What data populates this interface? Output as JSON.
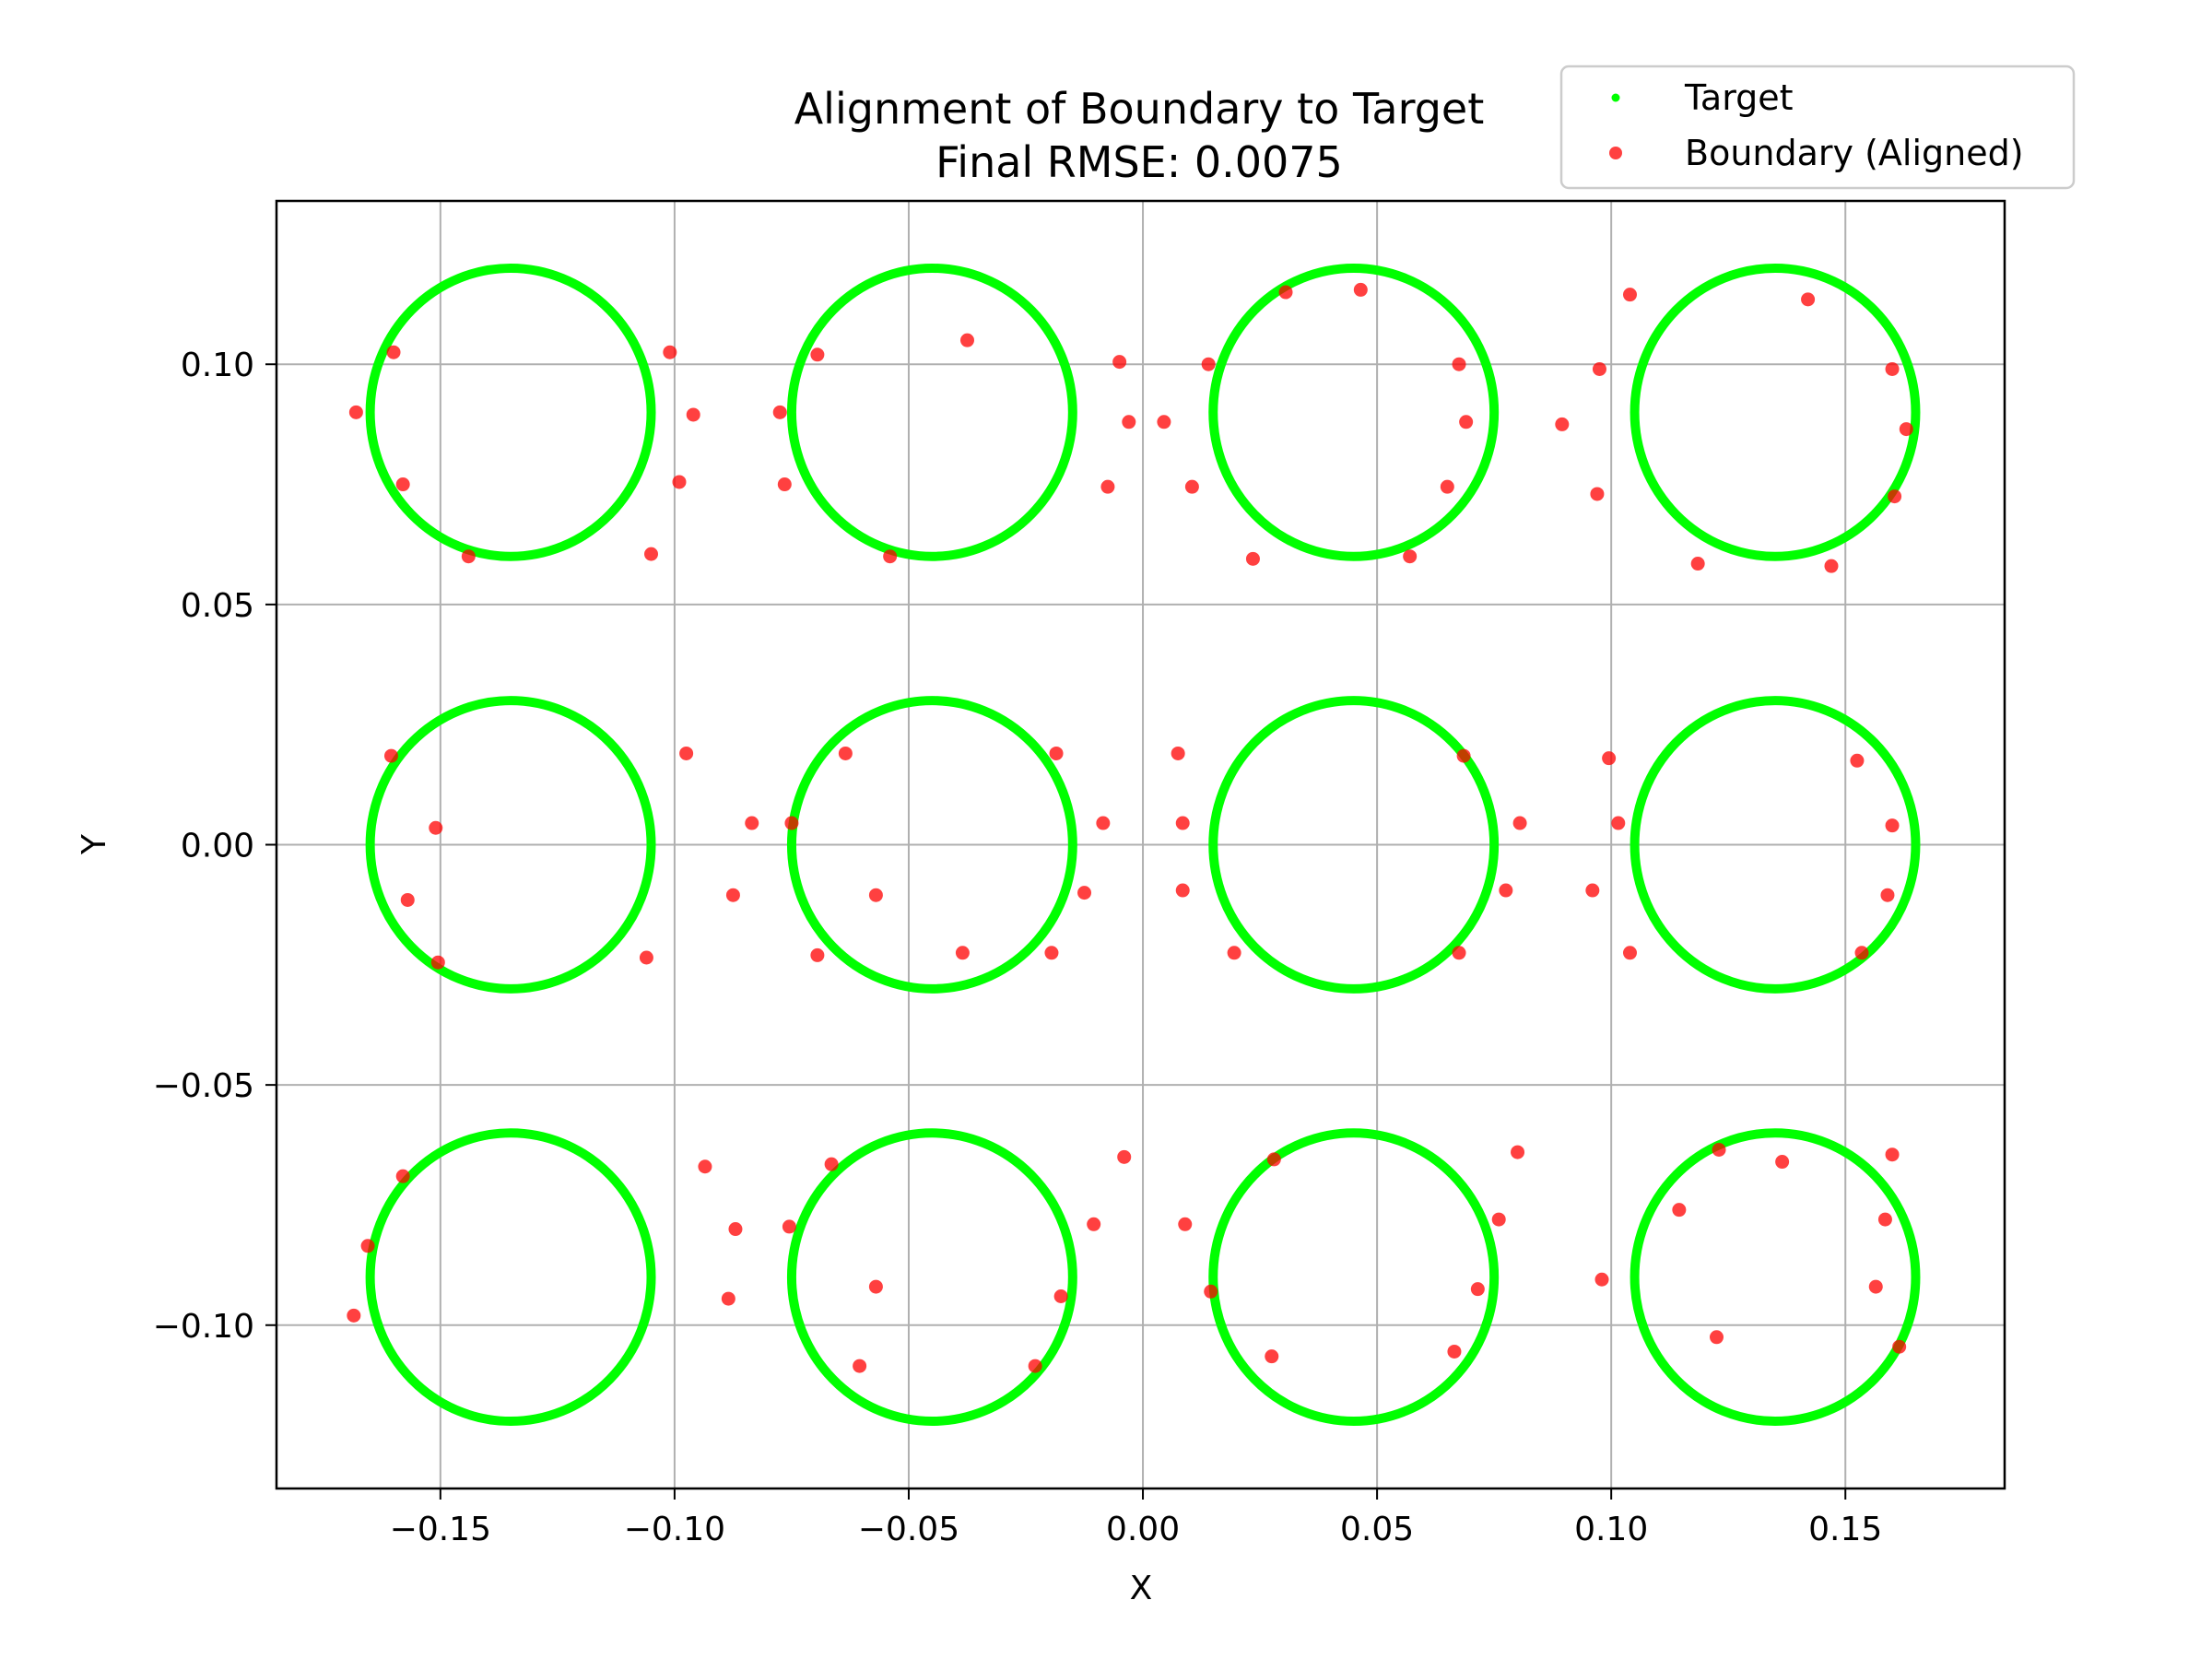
{
  "chart_data": {
    "type": "scatter",
    "title": [
      "Alignment of Boundary to Target",
      "Final RMSE: 0.0075"
    ],
    "xlabel": "X",
    "ylabel": "Y",
    "xlim": [
      -0.185,
      0.184
    ],
    "ylim": [
      -0.134,
      0.134
    ],
    "grid": true,
    "legend_position": "top-right",
    "xticks": [
      {
        "value": -0.15,
        "label": "−0.15"
      },
      {
        "value": -0.1,
        "label": "−0.10"
      },
      {
        "value": -0.05,
        "label": "−0.05"
      },
      {
        "value": 0.0,
        "label": "0.00"
      },
      {
        "value": 0.05,
        "label": "0.05"
      },
      {
        "value": 0.1,
        "label": "0.10"
      },
      {
        "value": 0.15,
        "label": "0.15"
      }
    ],
    "yticks": [
      {
        "value": 0.1,
        "label": "0.10"
      },
      {
        "value": 0.05,
        "label": "0.05"
      },
      {
        "value": 0.0,
        "label": "0.00"
      },
      {
        "value": -0.05,
        "label": "−0.05"
      },
      {
        "value": -0.1,
        "label": "−0.10"
      }
    ],
    "series": [
      {
        "name": "Target",
        "color": "#00ff00",
        "shape": "circles",
        "radius": 0.03,
        "centers": [
          [
            -0.135,
            0.09
          ],
          [
            -0.045,
            0.09
          ],
          [
            0.045,
            0.09
          ],
          [
            0.135,
            0.09
          ],
          [
            -0.135,
            0.0
          ],
          [
            -0.045,
            0.0
          ],
          [
            0.045,
            0.0
          ],
          [
            0.135,
            0.0
          ],
          [
            -0.135,
            -0.09
          ],
          [
            -0.045,
            -0.09
          ],
          [
            0.045,
            -0.09
          ],
          [
            0.135,
            -0.09
          ]
        ]
      },
      {
        "name": "Boundary (Aligned)",
        "color": "#ff0000",
        "points": [
          [
            -0.168,
            0.09
          ],
          [
            -0.16,
            0.1025
          ],
          [
            -0.158,
            0.075
          ],
          [
            -0.144,
            0.06
          ],
          [
            -0.101,
            0.1025
          ],
          [
            -0.096,
            0.0895
          ],
          [
            -0.099,
            0.0755
          ],
          [
            -0.105,
            0.0605
          ],
          [
            -0.0775,
            0.09
          ],
          [
            -0.0695,
            0.102
          ],
          [
            -0.0765,
            0.075
          ],
          [
            -0.054,
            0.06
          ],
          [
            -0.0375,
            0.105
          ],
          [
            -0.005,
            0.1005
          ],
          [
            -0.003,
            0.088
          ],
          [
            -0.0075,
            0.0745
          ],
          [
            0.0045,
            0.088
          ],
          [
            0.014,
            0.1
          ],
          [
            0.0105,
            0.0745
          ],
          [
            0.0235,
            0.0595
          ],
          [
            0.0305,
            0.115
          ],
          [
            0.0465,
            0.1155
          ],
          [
            0.0675,
            0.1
          ],
          [
            0.069,
            0.088
          ],
          [
            0.065,
            0.0745
          ],
          [
            0.057,
            0.06
          ],
          [
            0.0895,
            0.0875
          ],
          [
            0.0975,
            0.099
          ],
          [
            0.097,
            0.073
          ],
          [
            0.104,
            0.1145
          ],
          [
            0.1185,
            0.0585
          ],
          [
            0.142,
            0.1135
          ],
          [
            0.147,
            0.058
          ],
          [
            0.16,
            0.099
          ],
          [
            0.163,
            0.0865
          ],
          [
            0.1605,
            0.0725
          ],
          [
            -0.1605,
            0.0185
          ],
          [
            -0.151,
            0.0035
          ],
          [
            -0.157,
            -0.0115
          ],
          [
            -0.1505,
            -0.0245
          ],
          [
            -0.0975,
            0.019
          ],
          [
            -0.106,
            -0.0235
          ],
          [
            -0.0835,
            0.0045
          ],
          [
            -0.0875,
            -0.0105
          ],
          [
            -0.075,
            0.0045
          ],
          [
            -0.0635,
            0.019
          ],
          [
            -0.057,
            -0.0105
          ],
          [
            -0.0695,
            -0.023
          ],
          [
            -0.0385,
            -0.0225
          ],
          [
            -0.0185,
            0.019
          ],
          [
            -0.0085,
            0.0045
          ],
          [
            -0.0125,
            -0.01
          ],
          [
            -0.0195,
            -0.0225
          ],
          [
            0.0075,
            0.019
          ],
          [
            0.0085,
            0.0045
          ],
          [
            0.0085,
            -0.0095
          ],
          [
            0.0195,
            -0.0225
          ],
          [
            0.0685,
            0.0185
          ],
          [
            0.0805,
            0.0045
          ],
          [
            0.0775,
            -0.0095
          ],
          [
            0.0675,
            -0.0225
          ],
          [
            0.0995,
            0.018
          ],
          [
            0.1015,
            0.0045
          ],
          [
            0.096,
            -0.0095
          ],
          [
            0.104,
            -0.0225
          ],
          [
            0.1525,
            0.0175
          ],
          [
            0.16,
            0.004
          ],
          [
            0.159,
            -0.0105
          ],
          [
            0.1535,
            -0.0225
          ],
          [
            -0.158,
            -0.069
          ],
          [
            -0.1655,
            -0.0835
          ],
          [
            -0.1685,
            -0.098
          ],
          [
            -0.0935,
            -0.067
          ],
          [
            -0.087,
            -0.08
          ],
          [
            -0.0885,
            -0.0945
          ],
          [
            -0.0755,
            -0.0795
          ],
          [
            -0.0665,
            -0.0665
          ],
          [
            -0.057,
            -0.092
          ],
          [
            -0.0605,
            -0.1085
          ],
          [
            -0.023,
            -0.1085
          ],
          [
            -0.0175,
            -0.094
          ],
          [
            -0.0105,
            -0.079
          ],
          [
            -0.004,
            -0.065
          ],
          [
            0.009,
            -0.079
          ],
          [
            0.0145,
            -0.093
          ],
          [
            0.0275,
            -0.1065
          ],
          [
            0.028,
            -0.0655
          ],
          [
            0.0665,
            -0.1055
          ],
          [
            0.0715,
            -0.0925
          ],
          [
            0.076,
            -0.078
          ],
          [
            0.08,
            -0.064
          ],
          [
            0.098,
            -0.0905
          ],
          [
            0.1145,
            -0.076
          ],
          [
            0.123,
            -0.0635
          ],
          [
            0.1225,
            -0.1025
          ],
          [
            0.1365,
            -0.066
          ],
          [
            0.1585,
            -0.078
          ],
          [
            0.16,
            -0.0645
          ],
          [
            0.1565,
            -0.092
          ],
          [
            0.1615,
            -0.1045
          ]
        ]
      }
    ]
  }
}
